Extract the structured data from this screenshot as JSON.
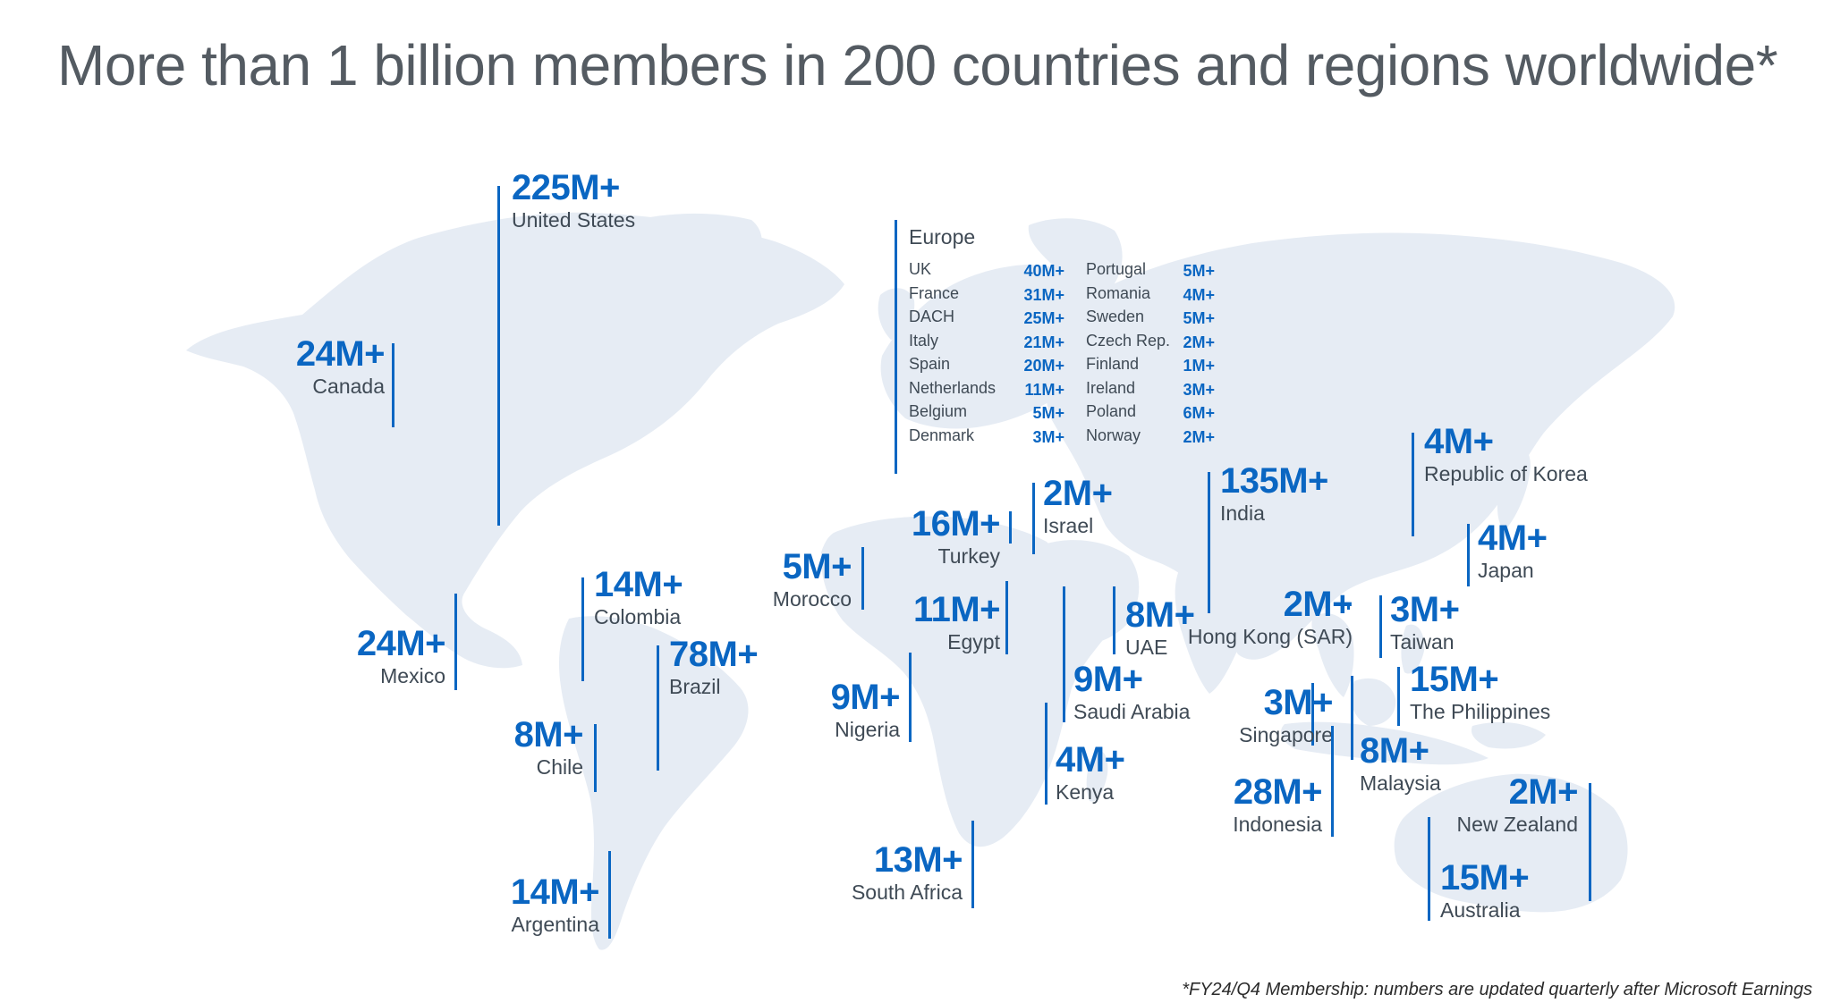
{
  "title": "More than 1 billion members in 200 countries and regions worldwide*",
  "footnote": "*FY24/Q4 Membership: numbers are updated quarterly after Microsoft Earnings",
  "colors": {
    "accent": "#0a66c2",
    "land": "#e6ecf4",
    "title": "#545b62",
    "text": "#3f4a55"
  },
  "markers": [
    {
      "id": "united-states",
      "value": "225M+",
      "name": "United States"
    },
    {
      "id": "canada",
      "value": "24M+",
      "name": "Canada"
    },
    {
      "id": "mexico",
      "value": "24M+",
      "name": "Mexico"
    },
    {
      "id": "colombia",
      "value": "14M+",
      "name": "Colombia"
    },
    {
      "id": "brazil",
      "value": "78M+",
      "name": "Brazil"
    },
    {
      "id": "chile",
      "value": "8M+",
      "name": "Chile"
    },
    {
      "id": "argentina",
      "value": "14M+",
      "name": "Argentina"
    },
    {
      "id": "morocco",
      "value": "5M+",
      "name": "Morocco"
    },
    {
      "id": "turkey",
      "value": "16M+",
      "name": "Turkey"
    },
    {
      "id": "israel",
      "value": "2M+",
      "name": "Israel"
    },
    {
      "id": "egypt",
      "value": "11M+",
      "name": "Egypt"
    },
    {
      "id": "nigeria",
      "value": "9M+",
      "name": "Nigeria"
    },
    {
      "id": "saudi-arabia",
      "value": "9M+",
      "name": "Saudi Arabia"
    },
    {
      "id": "uae",
      "value": "8M+",
      "name": "UAE"
    },
    {
      "id": "kenya",
      "value": "4M+",
      "name": "Kenya"
    },
    {
      "id": "south-africa",
      "value": "13M+",
      "name": "South Africa"
    },
    {
      "id": "india",
      "value": "135M+",
      "name": "India"
    },
    {
      "id": "hong-kong",
      "value": "2M+",
      "name": "Hong Kong (SAR)"
    },
    {
      "id": "taiwan",
      "value": "3M+",
      "name": "Taiwan"
    },
    {
      "id": "singapore",
      "value": "3M+",
      "name": "Singapore"
    },
    {
      "id": "indonesia",
      "value": "28M+",
      "name": "Indonesia"
    },
    {
      "id": "malaysia",
      "value": "8M+",
      "name": "Malaysia"
    },
    {
      "id": "philippines",
      "value": "15M+",
      "name": "The Philippines"
    },
    {
      "id": "korea",
      "value": "4M+",
      "name": "Republic of Korea"
    },
    {
      "id": "japan",
      "value": "4M+",
      "name": "Japan"
    },
    {
      "id": "new-zealand",
      "value": "2M+",
      "name": "New Zealand"
    },
    {
      "id": "australia",
      "value": "15M+",
      "name": "Australia"
    }
  ],
  "europe": {
    "title": "Europe",
    "col1": [
      {
        "name": "UK",
        "value": "40M+"
      },
      {
        "name": "France",
        "value": "31M+"
      },
      {
        "name": "DACH",
        "value": "25M+"
      },
      {
        "name": "Italy",
        "value": "21M+"
      },
      {
        "name": "Spain",
        "value": "20M+"
      },
      {
        "name": "Netherlands",
        "value": "11M+"
      },
      {
        "name": "Belgium",
        "value": "5M+"
      },
      {
        "name": "Denmark",
        "value": "3M+"
      }
    ],
    "col2": [
      {
        "name": "Portugal",
        "value": "5M+"
      },
      {
        "name": "Romania",
        "value": "4M+"
      },
      {
        "name": "Sweden",
        "value": "5M+"
      },
      {
        "name": "Czech Rep.",
        "value": "2M+"
      },
      {
        "name": "Finland",
        "value": "1M+"
      },
      {
        "name": "Ireland",
        "value": "3M+"
      },
      {
        "name": "Poland",
        "value": "6M+"
      },
      {
        "name": "Norway",
        "value": "2M+"
      }
    ]
  }
}
